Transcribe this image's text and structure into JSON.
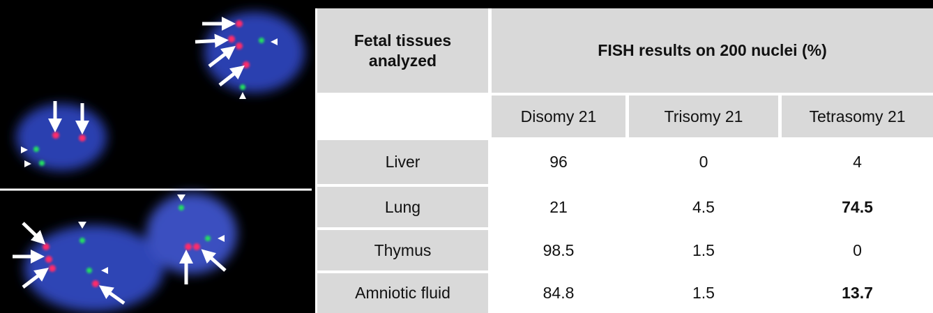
{
  "table": {
    "header": {
      "tissue": "Fetal tissues analyzed",
      "results": "FISH results on 200 nuclei (%)"
    },
    "columns": [
      "Disomy 21",
      "Trisomy 21",
      "Tetrasomy 21"
    ],
    "rows": [
      {
        "label": "Liver",
        "values": [
          96,
          0,
          4
        ],
        "bold": [
          false,
          false,
          false
        ]
      },
      {
        "label": "Lung",
        "values": [
          21,
          4.5,
          74.5
        ],
        "bold": [
          false,
          false,
          true
        ]
      },
      {
        "label": "Thymus",
        "values": [
          98.5,
          1.5,
          0
        ],
        "bold": [
          false,
          false,
          false
        ]
      },
      {
        "label": "Amniotic fluid",
        "values": [
          84.8,
          1.5,
          13.7
        ],
        "bold": [
          false,
          false,
          true
        ]
      }
    ]
  }
}
